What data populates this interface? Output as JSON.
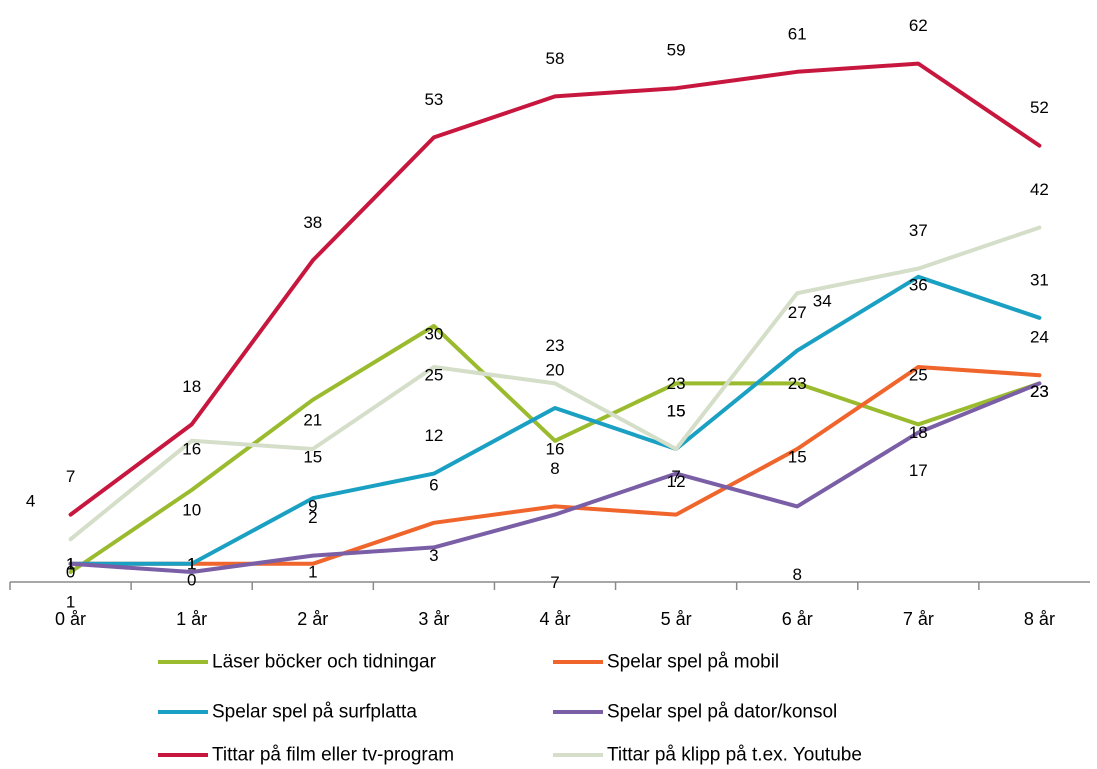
{
  "chart_data": {
    "type": "line",
    "categories": [
      "0 år",
      "1 år",
      "2 år",
      "3 år",
      "4 år",
      "5 år",
      "6 år",
      "7 år",
      "8 år"
    ],
    "ylim": [
      0,
      65
    ],
    "grid": false,
    "legend_position": "bottom",
    "series": [
      {
        "name": "Läser böcker och tidningar",
        "color": "#9BBB2F",
        "values": [
          0,
          10,
          21,
          30,
          16,
          23,
          23,
          18,
          23
        ]
      },
      {
        "name": "Spelar spel på mobil",
        "color": "#F0652C",
        "values": [
          1,
          1,
          1,
          6,
          8,
          7,
          15,
          25,
          24
        ]
      },
      {
        "name": "Spelar spel på surfplatta",
        "color": "#1AA0C2",
        "values": [
          1,
          1,
          9,
          12,
          20,
          15,
          27,
          36,
          31
        ]
      },
      {
        "name": "Spelar spel på dator/konsol",
        "color": "#7A5FA6",
        "values": [
          1,
          0,
          2,
          3,
          7,
          12,
          8,
          17,
          23
        ]
      },
      {
        "name": "Tittar på film eller tv-program",
        "color": "#C8173F",
        "values": [
          7,
          18,
          38,
          53,
          58,
          59,
          61,
          62,
          52
        ]
      },
      {
        "name": "Tittar på klipp på t.ex. Youtube",
        "color": "#D4DEC8",
        "values": [
          4,
          16,
          15,
          25,
          23,
          15,
          34,
          37,
          42
        ]
      }
    ]
  }
}
